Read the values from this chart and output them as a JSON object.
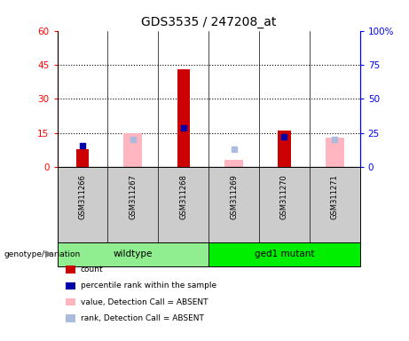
{
  "title": "GDS3535 / 247208_at",
  "samples": [
    "GSM311266",
    "GSM311267",
    "GSM311268",
    "GSM311269",
    "GSM311270",
    "GSM311271"
  ],
  "groups": [
    {
      "label": "wildtype",
      "samples": [
        0,
        1,
        2
      ],
      "color": "#90EE90"
    },
    {
      "label": "ged1 mutant",
      "samples": [
        3,
        4,
        5
      ],
      "color": "#00EE00"
    }
  ],
  "count_values": [
    8,
    null,
    43,
    null,
    16,
    null
  ],
  "percentile_values": [
    16,
    null,
    29,
    null,
    22,
    null
  ],
  "absent_value_values": [
    null,
    15,
    null,
    3,
    null,
    13
  ],
  "absent_rank_values": [
    null,
    20,
    null,
    13,
    null,
    20
  ],
  "left_ylim": [
    0,
    60
  ],
  "right_ylim": [
    0,
    100
  ],
  "left_yticks": [
    0,
    15,
    30,
    45,
    60
  ],
  "right_yticks": [
    0,
    25,
    50,
    75,
    100
  ],
  "left_ytick_labels": [
    "0",
    "15",
    "30",
    "45",
    "60"
  ],
  "right_ytick_labels": [
    "0",
    "25",
    "50",
    "75",
    "100%"
  ],
  "dotted_lines": [
    15,
    30,
    45
  ],
  "count_color": "#CC0000",
  "percentile_color": "#0000AA",
  "absent_value_color": "#FFB6C1",
  "absent_rank_color": "#AABBDD",
  "bg_color": "#CCCCCC",
  "title_fontsize": 10
}
